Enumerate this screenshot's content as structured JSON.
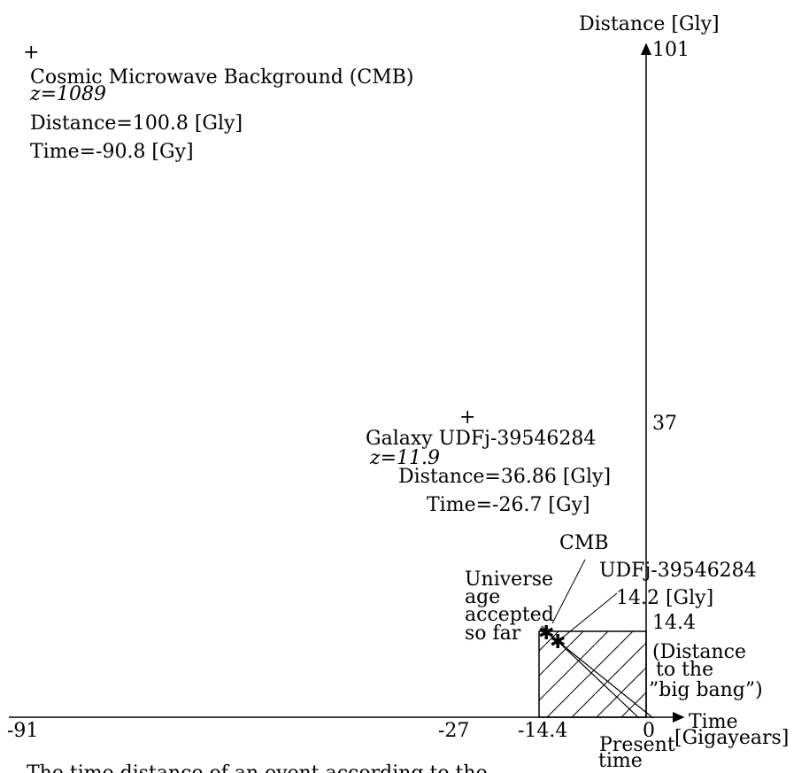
{
  "axes": {
    "y_title": "Distance [Gly]",
    "y_ticks": [
      "101",
      "37",
      "14.4"
    ],
    "x_title_line1": "Time",
    "x_title_line2": "[Gigayears]",
    "x_ticks": [
      "-91",
      "-27",
      "-14.4",
      "0"
    ],
    "present_line1": "Present",
    "present_line2": "time"
  },
  "cmb": {
    "lines": [
      "Cosmic Microwave Background (CMB)",
      "z=1089",
      "Distance=100.8 [Gly]",
      "Time=-90.8 [Gy]"
    ],
    "time_gy": -90.8,
    "distance_gly": 100.8
  },
  "galaxy": {
    "lines": [
      "Galaxy UDFj-39546284",
      "z=11.9",
      "Distance=36.86 [Gly]",
      "Time=-26.7 [Gy]"
    ],
    "time_gy": -26.7,
    "distance_gly": 36.86
  },
  "inset": {
    "cmb_label": "CMB",
    "udf_label": "UDFj-39546284",
    "udf_distance": "14.2 [Gly]",
    "universe_age": [
      "Universe",
      "age",
      "accepted",
      "so far"
    ],
    "big_bang": [
      "(Distance",
      "to the",
      "”big bang”)"
    ],
    "square_size": 14.4
  },
  "caption_fragment": "The time distance of an event according to the"
}
